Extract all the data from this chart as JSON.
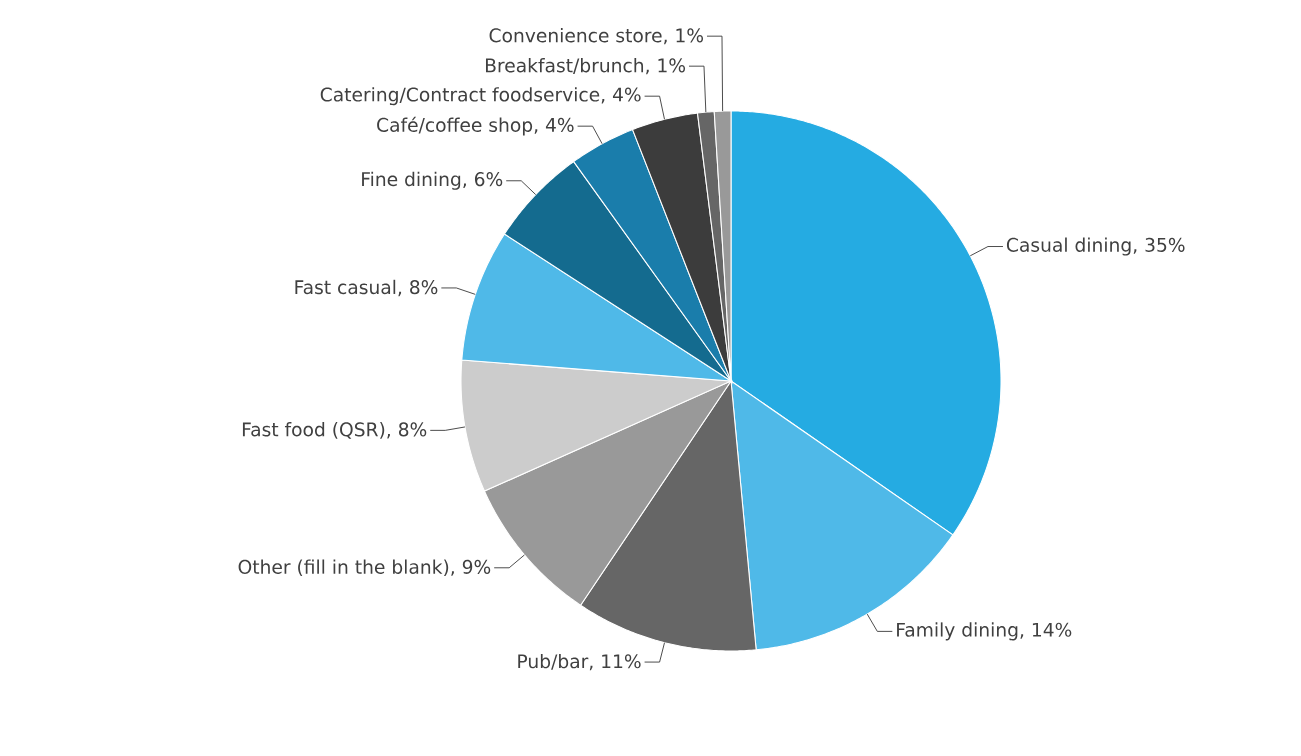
{
  "chart_data": {
    "type": "pie",
    "categories": [
      "Casual dining, 35%",
      "Family dining, 14%",
      "Pub/bar, 11%",
      "Other (fill in the blank), 9%",
      "Fast food (QSR), 8%",
      "Fast casual, 8%",
      "Fine dining, 6%",
      "Café/coffee shop, 4%",
      "Catering/Contract foodservice, 4%",
      "Breakfast/brunch, 1%",
      "Convenience store, 1%"
    ],
    "values": [
      35,
      14,
      11,
      9,
      8,
      8,
      6,
      4,
      4,
      1,
      1
    ],
    "colors": [
      "#25abe2",
      "#4fb9e8",
      "#666666",
      "#999999",
      "#cccccc",
      "#4fb9e8",
      "#146b8f",
      "#1a7dab",
      "#3c3c3c",
      "#666666",
      "#999999"
    ]
  }
}
